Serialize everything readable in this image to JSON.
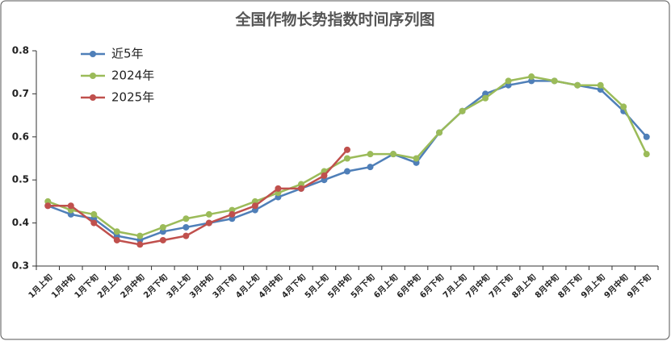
{
  "chart_data": {
    "type": "line",
    "title": "全国作物长势指数时间序列图",
    "categories": [
      "1月上旬",
      "1月中旬",
      "1月下旬",
      "2月上旬",
      "2月中旬",
      "2月下旬",
      "3月上旬",
      "3月中旬",
      "3月下旬",
      "4月上旬",
      "4月中旬",
      "4月下旬",
      "5月上旬",
      "5月中旬",
      "5月下旬",
      "6月上旬",
      "6月中旬",
      "6月下旬",
      "7月上旬",
      "7月中旬",
      "7月下旬",
      "8月上旬",
      "8月中旬",
      "8月下旬",
      "9月上旬",
      "9月中旬",
      "9月下旬"
    ],
    "series": [
      {
        "name": "近5年",
        "color": "#4f7fb8",
        "values": [
          0.44,
          0.42,
          0.41,
          0.37,
          0.36,
          0.38,
          0.39,
          0.4,
          0.41,
          0.43,
          0.46,
          0.48,
          0.5,
          0.52,
          0.53,
          0.56,
          0.54,
          0.61,
          0.66,
          0.7,
          0.72,
          0.73,
          0.73,
          0.72,
          0.71,
          0.66,
          0.6
        ]
      },
      {
        "name": "2024年",
        "color": "#9bbb59",
        "values": [
          0.45,
          0.43,
          0.42,
          0.38,
          0.37,
          0.39,
          0.41,
          0.42,
          0.43,
          0.45,
          0.47,
          0.49,
          0.52,
          0.55,
          0.56,
          0.56,
          0.55,
          0.61,
          0.66,
          0.69,
          0.73,
          0.74,
          0.73,
          0.72,
          0.72,
          0.67,
          0.56
        ]
      },
      {
        "name": "2025年",
        "color": "#c0504d",
        "values": [
          0.44,
          0.44,
          0.4,
          0.36,
          0.35,
          0.36,
          0.37,
          0.4,
          0.42,
          0.44,
          0.48,
          0.48,
          0.51,
          0.57,
          null,
          null,
          null,
          null,
          null,
          null,
          null,
          null,
          null,
          null,
          null,
          null,
          null
        ]
      }
    ],
    "ylim": [
      0.3,
      0.8
    ],
    "yticks": [
      0.3,
      0.4,
      0.5,
      0.6,
      0.7,
      0.8
    ],
    "grid": false,
    "legend": "upper left"
  }
}
